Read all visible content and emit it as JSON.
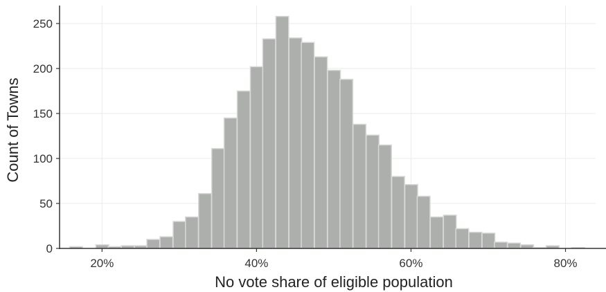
{
  "chart_data": {
    "type": "bar",
    "title": "",
    "xlabel": "No vote share of eligible population",
    "ylabel": "Count of Towns",
    "x_ticks": [
      {
        "value": 20,
        "label": "20%"
      },
      {
        "value": 40,
        "label": "40%"
      },
      {
        "value": 60,
        "label": "60%"
      },
      {
        "value": 80,
        "label": "80%"
      }
    ],
    "y_ticks": [
      {
        "value": 0,
        "label": "0"
      },
      {
        "value": 50,
        "label": "50"
      },
      {
        "value": 100,
        "label": "100"
      },
      {
        "value": 150,
        "label": "150"
      },
      {
        "value": 200,
        "label": "200"
      },
      {
        "value": 250,
        "label": "250"
      }
    ],
    "xlim": [
      14.5,
      83.9
    ],
    "ylim": [
      0,
      270
    ],
    "grid": true,
    "bin_width": 1.667,
    "bins": [
      {
        "x0": 15.8,
        "count": 2
      },
      {
        "x0": 17.5,
        "count": 0
      },
      {
        "x0": 19.2,
        "count": 4
      },
      {
        "x0": 20.8,
        "count": 2
      },
      {
        "x0": 22.5,
        "count": 3
      },
      {
        "x0": 24.2,
        "count": 3
      },
      {
        "x0": 25.8,
        "count": 10
      },
      {
        "x0": 27.5,
        "count": 13
      },
      {
        "x0": 29.2,
        "count": 30
      },
      {
        "x0": 30.8,
        "count": 35
      },
      {
        "x0": 32.5,
        "count": 61
      },
      {
        "x0": 34.2,
        "count": 111
      },
      {
        "x0": 35.8,
        "count": 145
      },
      {
        "x0": 37.5,
        "count": 175
      },
      {
        "x0": 39.2,
        "count": 202
      },
      {
        "x0": 40.8,
        "count": 233
      },
      {
        "x0": 42.5,
        "count": 258
      },
      {
        "x0": 44.2,
        "count": 234
      },
      {
        "x0": 45.8,
        "count": 229
      },
      {
        "x0": 47.5,
        "count": 213
      },
      {
        "x0": 49.2,
        "count": 198
      },
      {
        "x0": 50.8,
        "count": 188
      },
      {
        "x0": 52.5,
        "count": 138
      },
      {
        "x0": 54.2,
        "count": 126
      },
      {
        "x0": 55.8,
        "count": 115
      },
      {
        "x0": 57.5,
        "count": 80
      },
      {
        "x0": 59.2,
        "count": 71
      },
      {
        "x0": 60.8,
        "count": 58
      },
      {
        "x0": 62.5,
        "count": 35
      },
      {
        "x0": 64.2,
        "count": 37
      },
      {
        "x0": 65.8,
        "count": 22
      },
      {
        "x0": 67.5,
        "count": 18
      },
      {
        "x0": 69.2,
        "count": 17
      },
      {
        "x0": 70.8,
        "count": 7
      },
      {
        "x0": 72.5,
        "count": 6
      },
      {
        "x0": 74.2,
        "count": 4
      },
      {
        "x0": 75.8,
        "count": 1
      },
      {
        "x0": 77.5,
        "count": 3
      },
      {
        "x0": 79.2,
        "count": 0
      },
      {
        "x0": 80.8,
        "count": 1
      }
    ],
    "colors": {
      "bar_fill": "#adafad",
      "bar_stroke": "#d8d9d8",
      "grid": "#ebebeb",
      "axis": "#333333"
    }
  }
}
